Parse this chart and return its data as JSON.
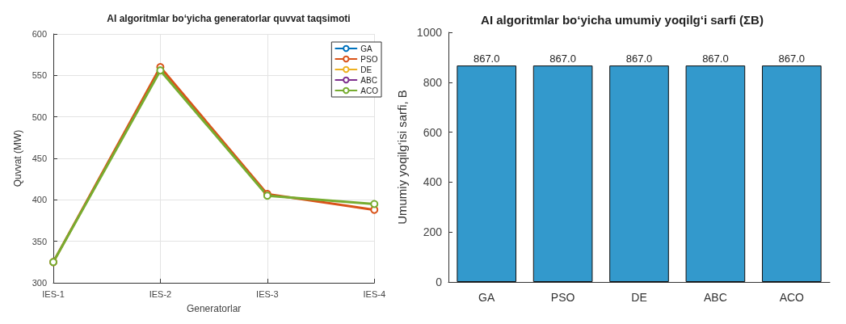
{
  "chart_data": [
    {
      "type": "line",
      "title": "AI algoritmlar bo‘yicha generatorlar quvvat taqsimoti",
      "xlabel": "Generatorlar",
      "ylabel": "Quvvat (MW)",
      "categories": [
        "IES-1",
        "IES-2",
        "IES-3",
        "IES-4"
      ],
      "ylim": [
        300,
        600
      ],
      "yticks": [
        300,
        350,
        400,
        450,
        500,
        550,
        600
      ],
      "grid": true,
      "legend": "top right",
      "marker": "circle",
      "line_style": "solid",
      "series": [
        {
          "name": "GA",
          "color": "#0072bd",
          "values": [
            null,
            null,
            null,
            null
          ]
        },
        {
          "name": "PSO",
          "color": "#d95319",
          "values": [
            325,
            560,
            407,
            388
          ]
        },
        {
          "name": "DE",
          "color": "#edb120",
          "values": [
            null,
            null,
            null,
            null
          ]
        },
        {
          "name": "ABC",
          "color": "#7e2f8e",
          "values": [
            null,
            null,
            null,
            null
          ]
        },
        {
          "name": "ACO",
          "color": "#77ac30",
          "values": [
            325,
            556,
            405,
            395
          ]
        }
      ]
    },
    {
      "type": "bar",
      "title": "AI algoritmlar bo‘yicha umumiy yoqilg‘i sarfi (ΣB)",
      "ylabel": "Umumiy yoqilg‘isi sarfi, B",
      "categories": [
        "GA",
        "PSO",
        "DE",
        "ABC",
        "ACO"
      ],
      "values": [
        867.0,
        867.0,
        867.0,
        867.0,
        867.0
      ],
      "value_labels": [
        "867.0",
        "867.0",
        "867.0",
        "867.0",
        "867.0"
      ],
      "color": "#3399cc",
      "ylim": [
        0,
        1000
      ],
      "yticks": [
        0,
        200,
        400,
        600,
        800,
        1000
      ],
      "grid": false,
      "legend": false
    }
  ]
}
